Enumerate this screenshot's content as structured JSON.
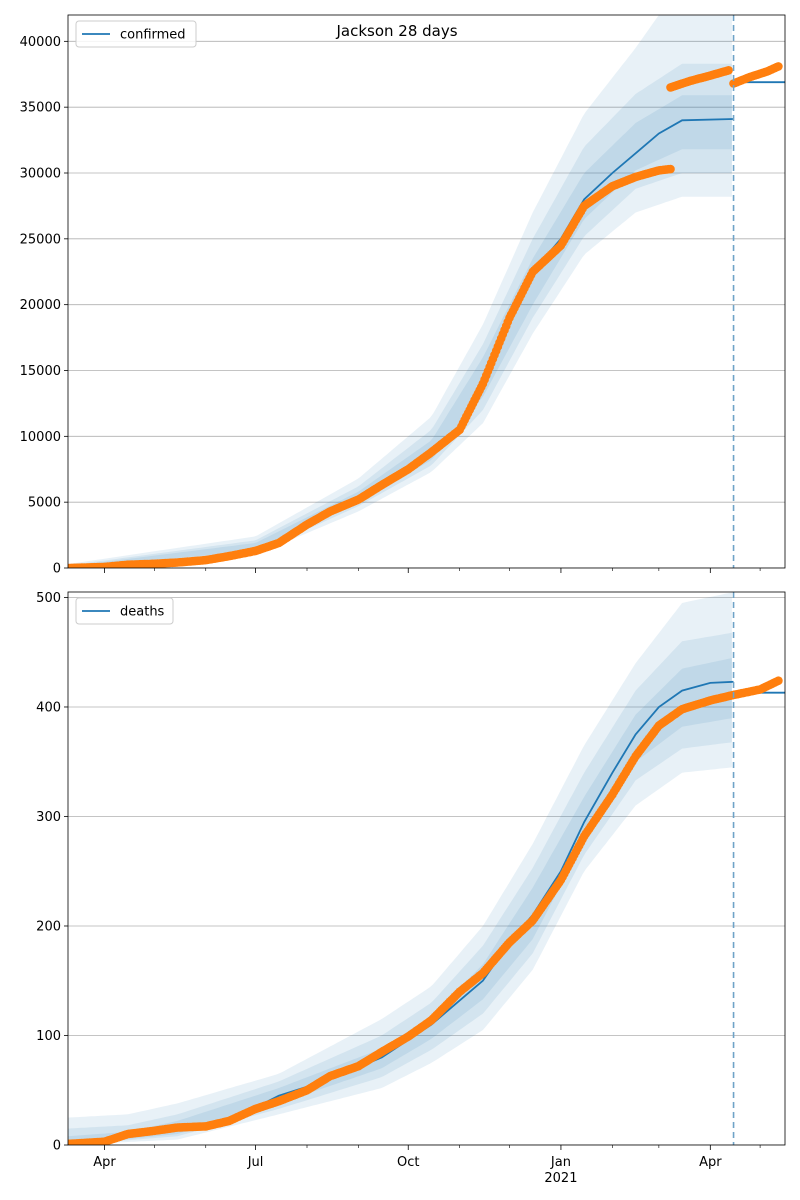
{
  "figure": {
    "title": "Jackson 28 days"
  },
  "chart_data": [
    {
      "type": "line",
      "series_name": "confirmed",
      "legend": "upper-left",
      "x_ticks": [
        {
          "date": "2020-04-01",
          "label": "Apr"
        },
        {
          "date": "2020-07-01",
          "label": "Jul"
        },
        {
          "date": "2020-10-01",
          "label": "Oct"
        },
        {
          "date": "2021-01-01",
          "label": "Jan",
          "sublabel": "2021"
        },
        {
          "date": "2021-04-01",
          "label": "Apr"
        }
      ],
      "x_minor_ticks": [
        "2020-05-01",
        "2020-06-01",
        "2020-08-01",
        "2020-09-01",
        "2020-11-01",
        "2020-12-01",
        "2021-02-01",
        "2021-03-01",
        "2021-05-01"
      ],
      "xlim": [
        "2020-03-10",
        "2021-05-16"
      ],
      "y_ticks": [
        0,
        5000,
        10000,
        15000,
        20000,
        25000,
        30000,
        35000,
        40000
      ],
      "ylim": [
        0,
        42000
      ],
      "grid": "horizontal",
      "forecast_start": "2021-04-15",
      "model_line": [
        [
          "2020-03-10",
          0
        ],
        [
          "2020-04-15",
          250
        ],
        [
          "2020-05-15",
          500
        ],
        [
          "2020-06-15",
          900
        ],
        [
          "2020-07-15",
          1700
        ],
        [
          "2020-08-01",
          3200
        ],
        [
          "2020-08-15",
          4300
        ],
        [
          "2020-09-01",
          5400
        ],
        [
          "2020-09-15",
          6500
        ],
        [
          "2020-10-01",
          7500
        ],
        [
          "2020-10-15",
          8800
        ],
        [
          "2020-11-01",
          10800
        ],
        [
          "2020-11-15",
          14500
        ],
        [
          "2020-12-01",
          19000
        ],
        [
          "2020-12-15",
          22500
        ],
        [
          "2021-01-01",
          25000
        ],
        [
          "2021-01-15",
          28000
        ],
        [
          "2021-02-01",
          30000
        ],
        [
          "2021-02-15",
          31500
        ],
        [
          "2021-03-01",
          33000
        ],
        [
          "2021-03-15",
          34000
        ],
        [
          "2021-04-15",
          34100
        ]
      ],
      "forecast_line": [
        [
          "2021-04-15",
          36900
        ],
        [
          "2021-05-16",
          36900
        ]
      ],
      "bands": [
        {
          "lower": [
            [
              "2020-03-10",
              0
            ],
            [
              "2020-07-01",
              1000
            ],
            [
              "2020-09-01",
              4300
            ],
            [
              "2020-10-15",
              7300
            ],
            [
              "2020-11-15",
              11000
            ],
            [
              "2020-12-15",
              17800
            ],
            [
              "2021-01-15",
              23800
            ],
            [
              "2021-02-15",
              27000
            ],
            [
              "2021-03-15",
              28200
            ],
            [
              "2021-04-15",
              28200
            ]
          ],
          "upper": [
            [
              "2020-03-10",
              300
            ],
            [
              "2020-07-01",
              2400
            ],
            [
              "2020-09-01",
              6800
            ],
            [
              "2020-10-15",
              11500
            ],
            [
              "2020-11-15",
              18500
            ],
            [
              "2020-12-15",
              27000
            ],
            [
              "2021-01-15",
              34500
            ],
            [
              "2021-02-15",
              39500
            ],
            [
              "2021-03-01",
              42000
            ],
            [
              "2021-04-15",
              42000
            ]
          ]
        },
        {
          "lower": [
            [
              "2020-03-10",
              0
            ],
            [
              "2020-07-01",
              1150
            ],
            [
              "2020-09-01",
              4700
            ],
            [
              "2020-10-15",
              7800
            ],
            [
              "2020-11-15",
              12000
            ],
            [
              "2020-12-15",
              19000
            ],
            [
              "2021-01-15",
              25200
            ],
            [
              "2021-02-15",
              28800
            ],
            [
              "2021-03-15",
              30000
            ],
            [
              "2021-04-15",
              30000
            ]
          ],
          "upper": [
            [
              "2020-03-10",
              200
            ],
            [
              "2020-07-01",
              2100
            ],
            [
              "2020-09-01",
              6200
            ],
            [
              "2020-10-15",
              10500
            ],
            [
              "2020-11-15",
              17000
            ],
            [
              "2020-12-15",
              25000
            ],
            [
              "2021-01-15",
              32000
            ],
            [
              "2021-02-15",
              36000
            ],
            [
              "2021-03-15",
              38300
            ],
            [
              "2021-04-15",
              38300
            ]
          ]
        },
        {
          "lower": [
            [
              "2020-03-10",
              0
            ],
            [
              "2020-07-01",
              1300
            ],
            [
              "2020-09-01",
              5000
            ],
            [
              "2020-10-15",
              8200
            ],
            [
              "2020-11-15",
              13000
            ],
            [
              "2020-12-15",
              20000
            ],
            [
              "2021-01-15",
              26500
            ],
            [
              "2021-02-15",
              30200
            ],
            [
              "2021-03-15",
              31800
            ],
            [
              "2021-04-15",
              31800
            ]
          ],
          "upper": [
            [
              "2020-03-10",
              120
            ],
            [
              "2020-07-01",
              1900
            ],
            [
              "2020-09-01",
              5800
            ],
            [
              "2020-10-15",
              9700
            ],
            [
              "2020-11-15",
              16000
            ],
            [
              "2020-12-15",
              23500
            ],
            [
              "2021-01-15",
              30000
            ],
            [
              "2021-02-15",
              33800
            ],
            [
              "2021-03-15",
              35900
            ],
            [
              "2021-04-15",
              35900
            ]
          ]
        }
      ],
      "observed_segments": [
        [
          [
            "2020-03-10",
            0
          ],
          [
            "2020-04-01",
            80
          ],
          [
            "2020-04-15",
            250
          ],
          [
            "2020-05-01",
            320
          ],
          [
            "2020-05-15",
            420
          ],
          [
            "2020-06-01",
            600
          ],
          [
            "2020-06-15",
            900
          ],
          [
            "2020-07-01",
            1300
          ],
          [
            "2020-07-15",
            1900
          ],
          [
            "2020-08-01",
            3300
          ],
          [
            "2020-08-15",
            4300
          ],
          [
            "2020-09-01",
            5200
          ],
          [
            "2020-09-15",
            6300
          ],
          [
            "2020-10-01",
            7500
          ],
          [
            "2020-10-15",
            8800
          ],
          [
            "2020-11-01",
            10500
          ],
          [
            "2020-11-15",
            14000
          ],
          [
            "2020-12-01",
            19000
          ],
          [
            "2020-12-15",
            22500
          ],
          [
            "2021-01-01",
            24500
          ],
          [
            "2021-01-15",
            27500
          ],
          [
            "2021-02-01",
            29000
          ],
          [
            "2021-02-15",
            29700
          ],
          [
            "2021-03-01",
            30200
          ],
          [
            "2021-03-08",
            30300
          ]
        ],
        [
          [
            "2021-03-08",
            36500
          ],
          [
            "2021-03-20",
            37000
          ],
          [
            "2021-04-01",
            37400
          ],
          [
            "2021-04-12",
            37800
          ]
        ],
        [
          [
            "2021-04-15",
            36800
          ],
          [
            "2021-04-25",
            37300
          ],
          [
            "2021-05-05",
            37700
          ],
          [
            "2021-05-12",
            38100
          ]
        ]
      ]
    },
    {
      "type": "line",
      "series_name": "deaths",
      "legend": "upper-left",
      "x_ticks": [
        {
          "date": "2020-04-01",
          "label": "Apr"
        },
        {
          "date": "2020-07-01",
          "label": "Jul"
        },
        {
          "date": "2020-10-01",
          "label": "Oct"
        },
        {
          "date": "2021-01-01",
          "label": "Jan",
          "sublabel": "2021"
        },
        {
          "date": "2021-04-01",
          "label": "Apr"
        }
      ],
      "x_minor_ticks": [
        "2020-05-01",
        "2020-06-01",
        "2020-08-01",
        "2020-09-01",
        "2020-11-01",
        "2020-12-01",
        "2021-02-01",
        "2021-03-01",
        "2021-05-01"
      ],
      "xlim": [
        "2020-03-10",
        "2021-05-16"
      ],
      "y_ticks": [
        0,
        100,
        200,
        300,
        400,
        500
      ],
      "ylim": [
        0,
        505
      ],
      "grid": "horizontal",
      "forecast_start": "2021-04-15",
      "model_line": [
        [
          "2020-03-10",
          0
        ],
        [
          "2020-04-15",
          8
        ],
        [
          "2020-05-15",
          15
        ],
        [
          "2020-06-15",
          22
        ],
        [
          "2020-07-15",
          45
        ],
        [
          "2020-08-15",
          60
        ],
        [
          "2020-09-15",
          80
        ],
        [
          "2020-10-15",
          110
        ],
        [
          "2020-11-15",
          150
        ],
        [
          "2020-12-01",
          185
        ],
        [
          "2020-12-15",
          210
        ],
        [
          "2021-01-01",
          250
        ],
        [
          "2021-01-15",
          295
        ],
        [
          "2021-02-01",
          340
        ],
        [
          "2021-02-15",
          375
        ],
        [
          "2021-03-01",
          400
        ],
        [
          "2021-03-15",
          415
        ],
        [
          "2021-04-01",
          422
        ],
        [
          "2021-04-15",
          423
        ]
      ],
      "forecast_line": [
        [
          "2021-04-15",
          413
        ],
        [
          "2021-05-16",
          413
        ]
      ],
      "bands": [
        {
          "lower": [
            [
              "2020-03-10",
              0
            ],
            [
              "2020-05-15",
              5
            ],
            [
              "2020-07-15",
              28
            ],
            [
              "2020-09-15",
              52
            ],
            [
              "2020-10-15",
              75
            ],
            [
              "2020-11-15",
              105
            ],
            [
              "2020-12-15",
              160
            ],
            [
              "2021-01-15",
              250
            ],
            [
              "2021-02-15",
              310
            ],
            [
              "2021-03-15",
              340
            ],
            [
              "2021-04-15",
              345
            ]
          ],
          "upper": [
            [
              "2020-03-10",
              25
            ],
            [
              "2020-04-15",
              28
            ],
            [
              "2020-05-15",
              38
            ],
            [
              "2020-07-15",
              65
            ],
            [
              "2020-09-15",
              115
            ],
            [
              "2020-10-15",
              145
            ],
            [
              "2020-11-15",
              200
            ],
            [
              "2020-12-15",
              275
            ],
            [
              "2021-01-15",
              365
            ],
            [
              "2021-02-15",
              440
            ],
            [
              "2021-03-15",
              495
            ],
            [
              "2021-04-15",
              505
            ]
          ]
        },
        {
          "lower": [
            [
              "2020-03-10",
              0
            ],
            [
              "2020-05-15",
              8
            ],
            [
              "2020-07-15",
              33
            ],
            [
              "2020-09-15",
              62
            ],
            [
              "2020-10-15",
              87
            ],
            [
              "2020-11-15",
              120
            ],
            [
              "2020-12-15",
              175
            ],
            [
              "2021-01-15",
              265
            ],
            [
              "2021-02-15",
              333
            ],
            [
              "2021-03-15",
              362
            ],
            [
              "2021-04-15",
              368
            ]
          ],
          "upper": [
            [
              "2020-03-10",
              15
            ],
            [
              "2020-04-15",
              18
            ],
            [
              "2020-05-15",
              28
            ],
            [
              "2020-07-15",
              58
            ],
            [
              "2020-09-15",
              100
            ],
            [
              "2020-10-15",
              130
            ],
            [
              "2020-11-15",
              182
            ],
            [
              "2020-12-15",
              253
            ],
            [
              "2021-01-15",
              340
            ],
            [
              "2021-02-15",
              415
            ],
            [
              "2021-03-15",
              460
            ],
            [
              "2021-04-15",
              468
            ]
          ]
        },
        {
          "lower": [
            [
              "2020-03-10",
              0
            ],
            [
              "2020-05-15",
              10
            ],
            [
              "2020-07-15",
              38
            ],
            [
              "2020-09-15",
              70
            ],
            [
              "2020-10-15",
              97
            ],
            [
              "2020-11-15",
              133
            ],
            [
              "2020-12-15",
              188
            ],
            [
              "2021-01-15",
              278
            ],
            [
              "2021-02-15",
              350
            ],
            [
              "2021-03-15",
              382
            ],
            [
              "2021-04-15",
              390
            ]
          ],
          "upper": [
            [
              "2020-03-10",
              8
            ],
            [
              "2020-04-15",
              12
            ],
            [
              "2020-05-15",
              22
            ],
            [
              "2020-07-15",
              52
            ],
            [
              "2020-09-15",
              88
            ],
            [
              "2020-10-15",
              118
            ],
            [
              "2020-11-15",
              165
            ],
            [
              "2020-12-15",
              235
            ],
            [
              "2021-01-15",
              318
            ],
            [
              "2021-02-15",
              393
            ],
            [
              "2021-03-15",
              435
            ],
            [
              "2021-04-15",
              445
            ]
          ]
        }
      ],
      "observed_segments": [
        [
          [
            "2020-03-10",
            1
          ],
          [
            "2020-04-01",
            3
          ],
          [
            "2020-04-15",
            10
          ],
          [
            "2020-05-01",
            13
          ],
          [
            "2020-05-15",
            16
          ],
          [
            "2020-06-01",
            17
          ],
          [
            "2020-06-15",
            22
          ],
          [
            "2020-07-01",
            33
          ],
          [
            "2020-07-15",
            40
          ],
          [
            "2020-08-01",
            50
          ],
          [
            "2020-08-15",
            63
          ],
          [
            "2020-09-01",
            72
          ],
          [
            "2020-09-15",
            85
          ],
          [
            "2020-10-01",
            99
          ],
          [
            "2020-10-15",
            114
          ],
          [
            "2020-11-01",
            140
          ],
          [
            "2020-11-15",
            157
          ],
          [
            "2020-12-01",
            185
          ],
          [
            "2020-12-15",
            205
          ],
          [
            "2021-01-01",
            242
          ],
          [
            "2021-01-15",
            282
          ],
          [
            "2021-02-01",
            320
          ],
          [
            "2021-02-15",
            355
          ],
          [
            "2021-03-01",
            383
          ],
          [
            "2021-03-15",
            398
          ],
          [
            "2021-04-01",
            406
          ],
          [
            "2021-04-15",
            411
          ],
          [
            "2021-05-01",
            416
          ],
          [
            "2021-05-12",
            424
          ]
        ]
      ]
    }
  ],
  "colors": {
    "model": "#1f77b4",
    "observed": "#ff7f0e",
    "band": "#1f77b4",
    "forecast_marker": "#6fa3c7",
    "grid": "#b0b0b0"
  }
}
